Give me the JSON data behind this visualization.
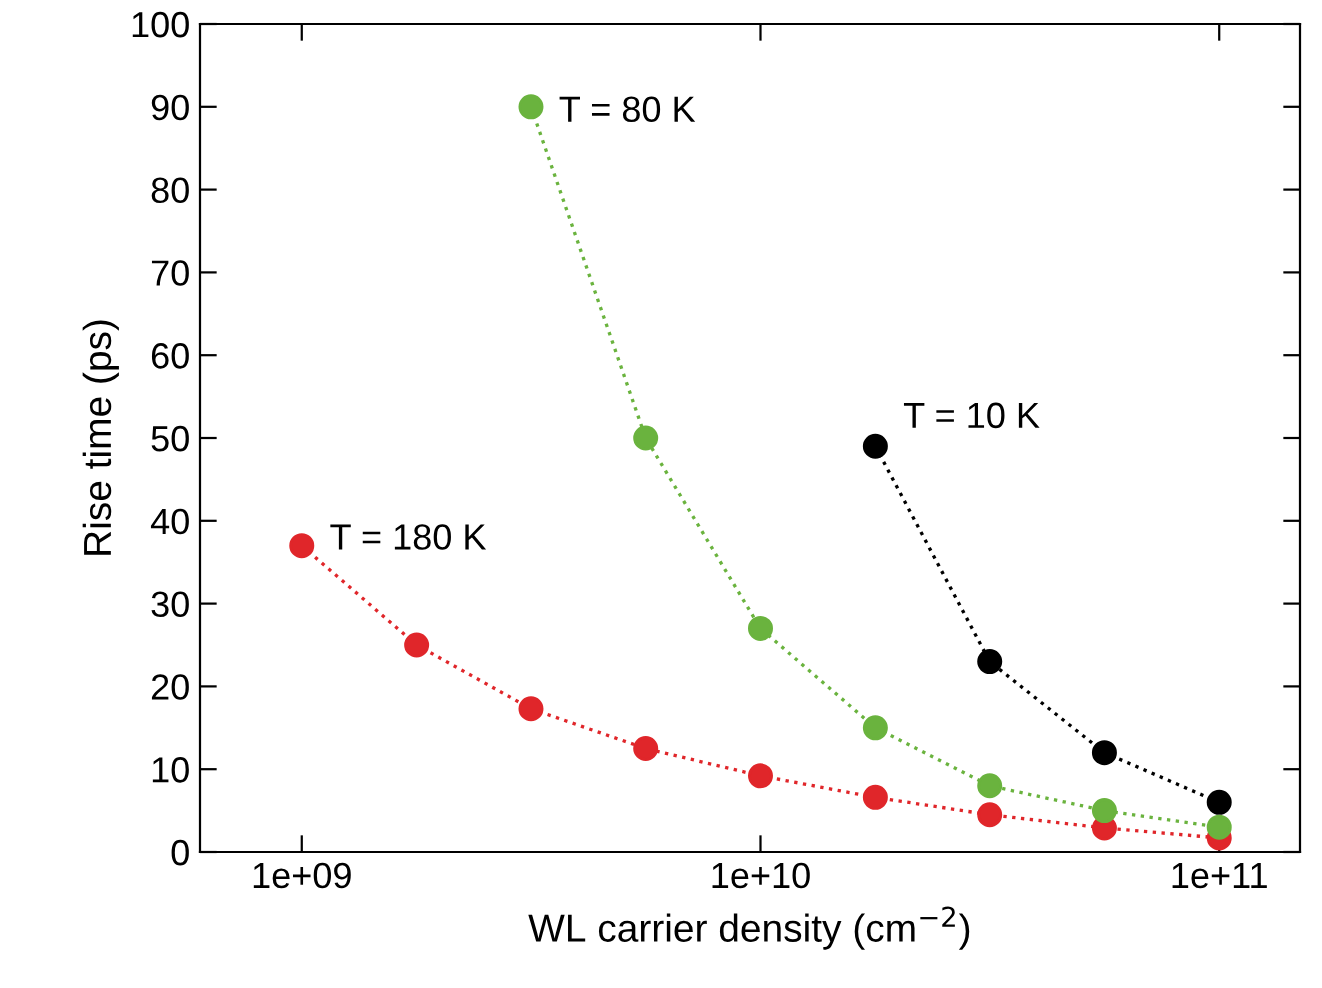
{
  "chart_data": {
    "type": "line",
    "xlabel": "WL carrier density (cm$^{−2}$)",
    "ylabel": "Rise time (ps)",
    "log": "x",
    "xlim": [
      600000000.0,
      150000000000.0
    ],
    "xticks": [
      {
        "value": 1000000000.0,
        "label": "1e+09"
      },
      {
        "value": 10000000000.0,
        "label": "1e+10"
      },
      {
        "value": 100000000000.0,
        "label": "1e+11"
      }
    ],
    "ylim": [
      0,
      100
    ],
    "yticks": [
      0,
      10,
      20,
      30,
      40,
      50,
      60,
      70,
      80,
      90,
      100
    ],
    "grid": false,
    "legend": false,
    "marker": "circle",
    "line_style": "dotted",
    "series": [
      {
        "name": "T = 10 K",
        "color": "#000000",
        "x": [
          17800000000.0,
          31600000000.0,
          56200000000.0,
          100000000000.0
        ],
        "values": [
          49,
          23,
          12,
          6
        ]
      },
      {
        "name": "T = 80 K",
        "color": "#6ab33e",
        "x": [
          3160000000.0,
          5620000000.0,
          10000000000.0,
          17800000000.0,
          31600000000.0,
          56200000000.0,
          100000000000.0
        ],
        "values": [
          90,
          50,
          27,
          15,
          8,
          5,
          3
        ]
      },
      {
        "name": "T = 180 K",
        "color": "#e0262a",
        "x": [
          1000000000.0,
          1780000000.0,
          3160000000.0,
          5620000000.0,
          10000000000.0,
          17800000000.0,
          31600000000.0,
          56200000000.0,
          100000000000.0
        ],
        "values": [
          37,
          25,
          17.3,
          12.5,
          9.2,
          6.6,
          4.5,
          2.9,
          1.7
        ]
      }
    ]
  }
}
